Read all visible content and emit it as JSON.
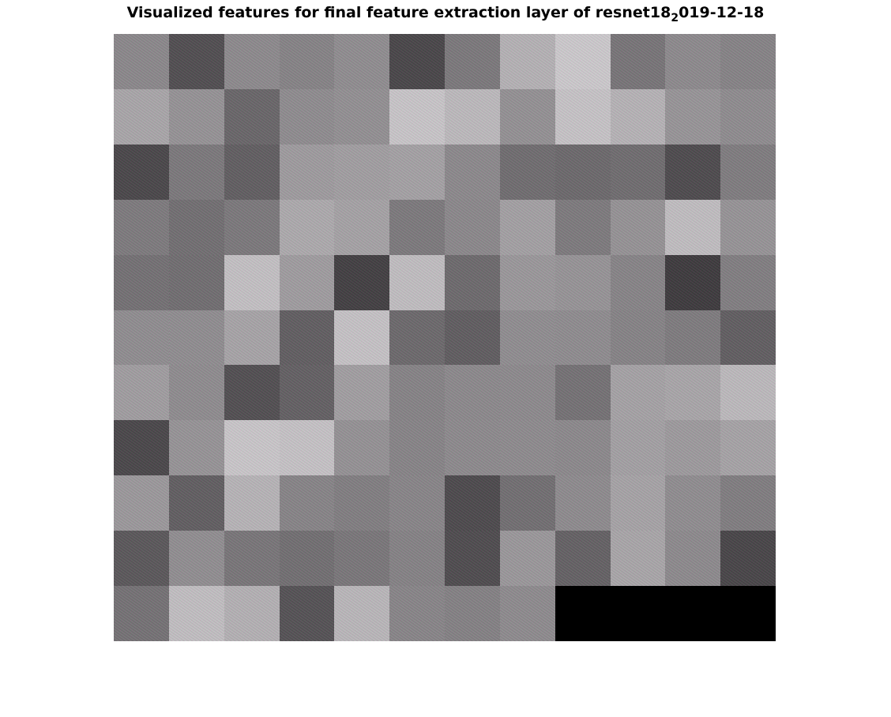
{
  "title": {
    "main": "Visualized features for final feature extraction layer of resnet18",
    "subscript": "2",
    "tail": "019-12-18"
  },
  "mosaic": {
    "rows": 11,
    "columns": 12,
    "tiles": [
      [
        "#8a8a8a",
        "#4e4e4e",
        "#8c8c8c",
        "#858585",
        "#8f8f8f",
        "#464646",
        "#7a7a7a",
        "#b5b5b5",
        "#cdcdcd",
        "#767676",
        "#8c8c8c",
        "#858585"
      ],
      [
        "#a9a9a9",
        "#959595",
        "#676767",
        "#8e8e8e",
        "#929292",
        "#c9c9c9",
        "#bdbdbd",
        "#939393",
        "#c7c7c7",
        "#b6b6b6",
        "#979797",
        "#8e8e8e"
      ],
      [
        "#474747",
        "#7a7a7a",
        "#5f5f5f",
        "#9e9e9e",
        "#a1a1a1",
        "#a4a4a4",
        "#8b8b8b",
        "#6e6e6e",
        "#6a6a6a",
        "#6e6e6e",
        "#4b4b4b",
        "#7e7e7e"
      ],
      [
        "#7c7c7c",
        "#707070",
        "#7a7a7a",
        "#adadad",
        "#a5a5a5",
        "#7b7b7b",
        "#8a8a8a",
        "#a3a3a3",
        "#7c7c7c",
        "#959595",
        "#c1c1c1",
        "#969696"
      ],
      [
        "#727272",
        "#6f6f6f",
        "#c4c4c4",
        "#9f9f9f",
        "#3f3f3f",
        "#c1c1c1",
        "#6b6b6b",
        "#9a9a9a",
        "#969696",
        "#868686",
        "#3a3a3a",
        "#808080"
      ],
      [
        "#8f8f8f",
        "#8f8f8f",
        "#a7a7a7",
        "#5f5f5f",
        "#c6c6c6",
        "#6a6a6a",
        "#5e5e5e",
        "#8f8f8f",
        "#8e8e8e",
        "#858585",
        "#7d7d7d",
        "#5f5f5f"
      ],
      [
        "#a0a0a0",
        "#8e8e8e",
        "#4f4f4f",
        "#616161",
        "#a1a1a1",
        "#858585",
        "#8b8b8b",
        "#8c8c8c",
        "#737373",
        "#a5a5a5",
        "#a9a9a9",
        "#bdbdbd"
      ],
      [
        "#474747",
        "#969696",
        "#cacaca",
        "#c6c6c6",
        "#949494",
        "#868686",
        "#8c8c8c",
        "#8d8d8d",
        "#8b8b8b",
        "#a3a3a3",
        "#9d9d9d",
        "#a6a6a6"
      ],
      [
        "#9b9b9b",
        "#5f5f5f",
        "#b7b7b7",
        "#868686",
        "#808080",
        "#878787",
        "#4a4a4a",
        "#707070",
        "#8d8d8d",
        "#a6a6a6",
        "#8f8f8f",
        "#7f7f7f"
      ],
      [
        "#585858",
        "#909090",
        "#777777",
        "#707070",
        "#787878",
        "#848484",
        "#4c4c4c",
        "#9a9a9a",
        "#626262",
        "#a9a9a9",
        "#8c8c8c",
        "#454545"
      ],
      [
        "#737373",
        "#c2c2c2",
        "#b4b4b4",
        "#525252",
        "#bababa",
        "#878787",
        "#838383",
        "#8d8d8d",
        "#000000",
        "#000000",
        "#000000",
        "#000000"
      ]
    ]
  }
}
